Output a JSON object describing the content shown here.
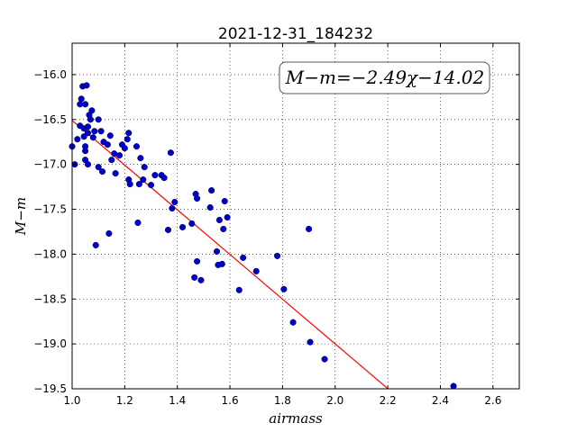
{
  "chart_data": {
    "type": "scatter",
    "title": "2021-12-31_184232",
    "xlabel": "airmass",
    "ylabel": "M−m",
    "xlim": [
      1.0,
      2.7
    ],
    "ylim": [
      -15.65,
      -19.5
    ],
    "x_ticks": [
      1.0,
      1.2,
      1.4,
      1.6,
      1.8,
      2.0,
      2.2,
      2.4,
      2.6
    ],
    "x_tick_labels": [
      "1.0",
      "1.2",
      "1.4",
      "1.6",
      "1.8",
      "2.0",
      "2.2",
      "2.4",
      "2.6"
    ],
    "y_ticks": [
      -16.0,
      -16.5,
      -17.0,
      -17.5,
      -18.0,
      -18.5,
      -19.0,
      -19.5
    ],
    "y_tick_labels": [
      "−16.0",
      "−16.5",
      "−17.0",
      "−17.5",
      "−18.0",
      "−18.5",
      "−19.0",
      "−19.5"
    ],
    "grid": true,
    "annotation": "M−m=−2.49χ−14.02",
    "fit": {
      "slope": -2.49,
      "intercept": -14.02,
      "x_range": [
        1.0,
        2.2
      ],
      "color": "#ff0000"
    },
    "point_color": "#0000cc",
    "points": [
      [
        1.0,
        -16.8
      ],
      [
        1.01,
        -17.0
      ],
      [
        1.02,
        -16.72
      ],
      [
        1.03,
        -16.57
      ],
      [
        1.03,
        -16.33
      ],
      [
        1.035,
        -16.27
      ],
      [
        1.04,
        -16.13
      ],
      [
        1.045,
        -16.6
      ],
      [
        1.05,
        -16.33
      ],
      [
        1.055,
        -16.12
      ],
      [
        1.045,
        -16.69
      ],
      [
        1.05,
        -16.8
      ],
      [
        1.05,
        -16.85
      ],
      [
        1.05,
        -16.95
      ],
      [
        1.06,
        -16.58
      ],
      [
        1.06,
        -16.65
      ],
      [
        1.065,
        -16.45
      ],
      [
        1.06,
        -17.0
      ],
      [
        1.07,
        -16.5
      ],
      [
        1.075,
        -16.4
      ],
      [
        1.08,
        -16.7
      ],
      [
        1.085,
        -16.63
      ],
      [
        1.09,
        -17.9
      ],
      [
        1.1,
        -16.5
      ],
      [
        1.1,
        -17.03
      ],
      [
        1.11,
        -16.63
      ],
      [
        1.115,
        -17.08
      ],
      [
        1.12,
        -16.75
      ],
      [
        1.135,
        -16.78
      ],
      [
        1.14,
        -17.77
      ],
      [
        1.145,
        -16.68
      ],
      [
        1.15,
        -16.95
      ],
      [
        1.16,
        -16.88
      ],
      [
        1.165,
        -17.1
      ],
      [
        1.18,
        -16.9
      ],
      [
        1.19,
        -16.78
      ],
      [
        1.2,
        -16.82
      ],
      [
        1.21,
        -16.72
      ],
      [
        1.215,
        -16.65
      ],
      [
        1.215,
        -17.17
      ],
      [
        1.22,
        -17.22
      ],
      [
        1.245,
        -16.8
      ],
      [
        1.25,
        -17.65
      ],
      [
        1.255,
        -17.22
      ],
      [
        1.26,
        -16.93
      ],
      [
        1.275,
        -17.03
      ],
      [
        1.27,
        -17.17
      ],
      [
        1.3,
        -17.23
      ],
      [
        1.315,
        -17.12
      ],
      [
        1.34,
        -17.12
      ],
      [
        1.35,
        -17.15
      ],
      [
        1.365,
        -17.73
      ],
      [
        1.375,
        -16.87
      ],
      [
        1.38,
        -17.49
      ],
      [
        1.39,
        -17.42
      ],
      [
        1.42,
        -17.7
      ],
      [
        1.455,
        -17.66
      ],
      [
        1.465,
        -18.26
      ],
      [
        1.47,
        -17.33
      ],
      [
        1.475,
        -17.38
      ],
      [
        1.475,
        -18.08
      ],
      [
        1.49,
        -18.29
      ],
      [
        1.525,
        -17.48
      ],
      [
        1.53,
        -17.29
      ],
      [
        1.55,
        -17.97
      ],
      [
        1.555,
        -18.12
      ],
      [
        1.56,
        -17.62
      ],
      [
        1.57,
        -18.11
      ],
      [
        1.575,
        -17.72
      ],
      [
        1.58,
        -17.41
      ],
      [
        1.59,
        -17.59
      ],
      [
        1.635,
        -18.4
      ],
      [
        1.65,
        -18.04
      ],
      [
        1.7,
        -18.19
      ],
      [
        1.78,
        -18.02
      ],
      [
        1.805,
        -18.39
      ],
      [
        1.84,
        -18.76
      ],
      [
        1.9,
        -17.72
      ],
      [
        1.905,
        -18.98
      ],
      [
        1.96,
        -19.17
      ],
      [
        2.45,
        -19.47
      ]
    ]
  }
}
